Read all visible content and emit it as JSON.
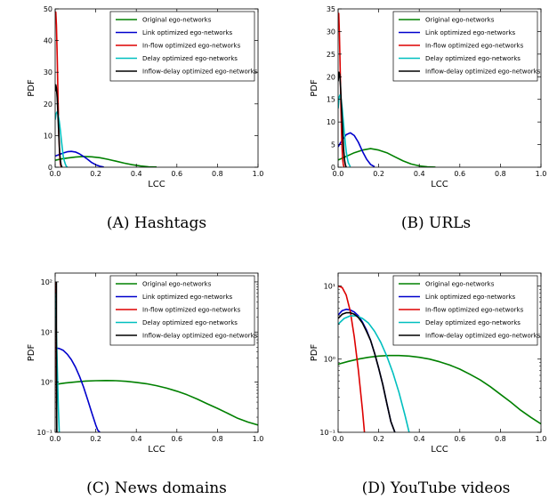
{
  "legend": [
    {
      "name": "Original ego-networks",
      "color": "#008000"
    },
    {
      "name": "Link optimized ego-networks",
      "color": "#0000cc"
    },
    {
      "name": "In-flow optimized ego-networks",
      "color": "#dd0000"
    },
    {
      "name": "Delay optimized ego-networks",
      "color": "#00bfbf"
    },
    {
      "name": "Inflow-delay optimized ego-networks",
      "color": "#000000"
    }
  ],
  "chart_data": [
    {
      "type": "line",
      "caption": "(A) Hashtags",
      "xlabel": "LCC",
      "ylabel": "PDF",
      "xlim": [
        0,
        1
      ],
      "ylim": [
        0,
        50
      ],
      "yscale": "linear",
      "xticks": [
        "0.0",
        "0.2",
        "0.4",
        "0.6",
        "0.8",
        "1.0"
      ],
      "yticks": [
        {
          "v": 0,
          "t": "0"
        },
        {
          "v": 10,
          "t": "10"
        },
        {
          "v": 20,
          "t": "20"
        },
        {
          "v": 30,
          "t": "30"
        },
        {
          "v": 40,
          "t": "40"
        },
        {
          "v": 50,
          "t": "50"
        }
      ],
      "legend_position": "top-right",
      "series": [
        {
          "name": "Original ego-networks",
          "color": "#008000",
          "x": [
            0,
            0.03,
            0.06,
            0.1,
            0.14,
            0.18,
            0.22,
            0.26,
            0.3,
            0.34,
            0.38,
            0.42,
            0.46,
            0.5
          ],
          "y": [
            2.2,
            2.6,
            2.9,
            3.2,
            3.4,
            3.3,
            3.0,
            2.5,
            1.9,
            1.3,
            0.8,
            0.4,
            0.15,
            0.05
          ]
        },
        {
          "name": "Link optimized ego-networks",
          "color": "#0000cc",
          "x": [
            0,
            0.02,
            0.04,
            0.06,
            0.08,
            0.1,
            0.12,
            0.14,
            0.16,
            0.18,
            0.2,
            0.22,
            0.24
          ],
          "y": [
            3.5,
            4.0,
            4.5,
            4.9,
            5.0,
            4.8,
            4.2,
            3.4,
            2.5,
            1.5,
            0.8,
            0.3,
            0.05
          ]
        },
        {
          "name": "In-flow optimized ego-networks",
          "color": "#dd0000",
          "x": [
            0,
            0.003,
            0.006,
            0.01,
            0.014,
            0.018,
            0.022,
            0.026,
            0.03
          ],
          "y": [
            48,
            49,
            45,
            35,
            22,
            11,
            4,
            1,
            0
          ]
        },
        {
          "name": "Delay optimized ego-networks",
          "color": "#00bfbf",
          "x": [
            0,
            0.005,
            0.01,
            0.015,
            0.02,
            0.025,
            0.03,
            0.035,
            0.04,
            0.045,
            0.05,
            0.055,
            0.06
          ],
          "y": [
            15,
            17,
            17.5,
            16.5,
            14.5,
            12,
            9,
            6,
            3.5,
            2,
            1,
            0.3,
            0
          ]
        },
        {
          "name": "Inflow-delay optimized ego-networks",
          "color": "#000000",
          "x": [
            0,
            0.003,
            0.006,
            0.01,
            0.014,
            0.018,
            0.022,
            0.026,
            0.03,
            0.034
          ],
          "y": [
            24,
            26,
            25,
            22,
            16,
            10,
            5,
            2,
            0.5,
            0
          ]
        }
      ]
    },
    {
      "type": "line",
      "caption": "(B) URLs",
      "xlabel": "LCC",
      "ylabel": "PDF",
      "xlim": [
        0,
        1
      ],
      "ylim": [
        0,
        35
      ],
      "yscale": "linear",
      "xticks": [
        "0.0",
        "0.2",
        "0.4",
        "0.6",
        "0.8",
        "1.0"
      ],
      "yticks": [
        {
          "v": 0,
          "t": "0"
        },
        {
          "v": 5,
          "t": "5"
        },
        {
          "v": 10,
          "t": "10"
        },
        {
          "v": 15,
          "t": "15"
        },
        {
          "v": 20,
          "t": "20"
        },
        {
          "v": 25,
          "t": "25"
        },
        {
          "v": 30,
          "t": "30"
        },
        {
          "v": 35,
          "t": "35"
        }
      ],
      "legend_position": "top-right",
      "series": [
        {
          "name": "Original ego-networks",
          "color": "#008000",
          "x": [
            0,
            0.04,
            0.08,
            0.12,
            0.16,
            0.2,
            0.24,
            0.28,
            0.32,
            0.36,
            0.4,
            0.44,
            0.48
          ],
          "y": [
            1.6,
            2.4,
            3.2,
            3.8,
            4.1,
            3.8,
            3.2,
            2.3,
            1.4,
            0.7,
            0.3,
            0.1,
            0.02
          ]
        },
        {
          "name": "Link optimized ego-networks",
          "color": "#0000cc",
          "x": [
            0,
            0.02,
            0.04,
            0.06,
            0.08,
            0.1,
            0.12,
            0.14,
            0.16,
            0.18
          ],
          "y": [
            4.5,
            6.0,
            7.2,
            7.6,
            7.0,
            5.5,
            3.5,
            1.8,
            0.6,
            0.1
          ]
        },
        {
          "name": "In-flow optimized ego-networks",
          "color": "#dd0000",
          "x": [
            0,
            0.003,
            0.006,
            0.01,
            0.014,
            0.018,
            0.022,
            0.026,
            0.03
          ],
          "y": [
            33,
            34,
            30,
            22,
            13,
            6,
            2,
            0.5,
            0
          ]
        },
        {
          "name": "Delay optimized ego-networks",
          "color": "#00bfbf",
          "x": [
            0,
            0.005,
            0.01,
            0.015,
            0.02,
            0.025,
            0.03,
            0.035,
            0.04,
            0.045,
            0.05,
            0.06
          ],
          "y": [
            13,
            15.5,
            16,
            15,
            13,
            10.5,
            8,
            5.5,
            3.5,
            2,
            1,
            0.1
          ]
        },
        {
          "name": "Inflow-delay optimized ego-networks",
          "color": "#000000",
          "x": [
            0,
            0.004,
            0.008,
            0.012,
            0.016,
            0.02,
            0.024,
            0.028,
            0.032,
            0.036,
            0.04
          ],
          "y": [
            19,
            21,
            20.5,
            18,
            14,
            10,
            6.5,
            3.5,
            1.5,
            0.5,
            0
          ]
        }
      ]
    },
    {
      "type": "line",
      "caption": "(C) News domains",
      "xlabel": "LCC",
      "ylabel": "PDF",
      "xlim": [
        0,
        1
      ],
      "ylim": [
        0.1,
        150
      ],
      "yscale": "log",
      "xticks": [
        "0.0",
        "0.2",
        "0.4",
        "0.6",
        "0.8",
        "1.0"
      ],
      "yticks": [
        {
          "v": 0.1,
          "t": "10⁻¹"
        },
        {
          "v": 1,
          "t": "10⁰"
        },
        {
          "v": 10,
          "t": "10¹"
        },
        {
          "v": 100,
          "t": "10²"
        }
      ],
      "legend_position": "top-right",
      "series": [
        {
          "name": "Original ego-networks",
          "color": "#008000",
          "x": [
            0,
            0.05,
            0.1,
            0.15,
            0.2,
            0.25,
            0.3,
            0.35,
            0.4,
            0.45,
            0.5,
            0.55,
            0.6,
            0.65,
            0.7,
            0.75,
            0.8,
            0.85,
            0.9,
            0.95,
            1.0
          ],
          "y": [
            0.9,
            0.96,
            1.01,
            1.05,
            1.07,
            1.08,
            1.07,
            1.04,
            0.99,
            0.93,
            0.85,
            0.76,
            0.66,
            0.56,
            0.46,
            0.37,
            0.3,
            0.24,
            0.19,
            0.16,
            0.14
          ]
        },
        {
          "name": "Link optimized ego-networks",
          "color": "#0000cc",
          "x": [
            0,
            0.02,
            0.04,
            0.06,
            0.08,
            0.1,
            0.12,
            0.14,
            0.16,
            0.18,
            0.2,
            0.21,
            0.22
          ],
          "y": [
            4.8,
            4.7,
            4.3,
            3.6,
            2.8,
            2.0,
            1.3,
            0.8,
            0.45,
            0.25,
            0.14,
            0.11,
            0.1
          ]
        },
        {
          "name": "In-flow optimized ego-networks",
          "color": "#dd0000",
          "x": [
            0,
            0.002,
            0.004,
            0.006,
            0.008
          ],
          "y": [
            100,
            40,
            8,
            1,
            0.1
          ]
        },
        {
          "name": "Delay optimized ego-networks",
          "color": "#00bfbf",
          "x": [
            0,
            0.004,
            0.008,
            0.012,
            0.016,
            0.02
          ],
          "y": [
            60,
            20,
            5,
            1.2,
            0.3,
            0.1
          ]
        },
        {
          "name": "Inflow-delay optimized ego-networks",
          "color": "#000000",
          "x": [
            0.006,
            0.006,
            0.007,
            0.008
          ],
          "y": [
            100,
            10,
            1,
            0.1
          ]
        }
      ]
    },
    {
      "type": "line",
      "caption": "(D) YouTube videos",
      "xlabel": "LCC",
      "ylabel": "PDF",
      "xlim": [
        0,
        1
      ],
      "ylim": [
        0.1,
        15
      ],
      "yscale": "log",
      "xticks": [
        "0.0",
        "0.2",
        "0.4",
        "0.6",
        "0.8",
        "1.0"
      ],
      "yticks": [
        {
          "v": 0.1,
          "t": "10⁻¹"
        },
        {
          "v": 1,
          "t": "10⁰"
        },
        {
          "v": 10,
          "t": "10¹"
        }
      ],
      "legend_position": "top-right",
      "series": [
        {
          "name": "Original ego-networks",
          "color": "#008000",
          "x": [
            0,
            0.05,
            0.1,
            0.15,
            0.2,
            0.25,
            0.3,
            0.35,
            0.4,
            0.45,
            0.5,
            0.55,
            0.6,
            0.65,
            0.7,
            0.75,
            0.8,
            0.85,
            0.9,
            0.95,
            1.0
          ],
          "y": [
            0.85,
            0.93,
            1.0,
            1.06,
            1.1,
            1.12,
            1.12,
            1.1,
            1.06,
            1.0,
            0.92,
            0.83,
            0.73,
            0.62,
            0.52,
            0.42,
            0.33,
            0.26,
            0.2,
            0.16,
            0.13
          ]
        },
        {
          "name": "Link optimized ego-networks",
          "color": "#0000cc",
          "x": [
            0,
            0.02,
            0.04,
            0.06,
            0.08,
            0.1,
            0.12,
            0.14,
            0.16,
            0.18,
            0.2,
            0.22,
            0.24,
            0.26,
            0.28
          ],
          "y": [
            4.0,
            4.6,
            4.8,
            4.7,
            4.4,
            3.9,
            3.2,
            2.5,
            1.8,
            1.2,
            0.75,
            0.45,
            0.25,
            0.14,
            0.1
          ]
        },
        {
          "name": "In-flow optimized ego-networks",
          "color": "#dd0000",
          "x": [
            0,
            0.02,
            0.04,
            0.06,
            0.08,
            0.1,
            0.12,
            0.13
          ],
          "y": [
            10,
            9.5,
            7.5,
            4.5,
            2.0,
            0.7,
            0.2,
            0.1
          ]
        },
        {
          "name": "Delay optimized ego-networks",
          "color": "#00bfbf",
          "x": [
            0,
            0.03,
            0.06,
            0.09,
            0.12,
            0.15,
            0.18,
            0.21,
            0.24,
            0.27,
            0.3,
            0.33,
            0.35
          ],
          "y": [
            3.0,
            3.6,
            3.9,
            3.9,
            3.6,
            3.1,
            2.4,
            1.7,
            1.1,
            0.65,
            0.35,
            0.17,
            0.1
          ]
        },
        {
          "name": "Inflow-delay optimized ego-networks",
          "color": "#000000",
          "x": [
            0,
            0.02,
            0.04,
            0.06,
            0.08,
            0.1,
            0.12,
            0.14,
            0.16,
            0.18,
            0.2,
            0.22,
            0.24,
            0.26,
            0.28
          ],
          "y": [
            3.6,
            4.1,
            4.3,
            4.3,
            4.1,
            3.7,
            3.1,
            2.4,
            1.8,
            1.2,
            0.75,
            0.45,
            0.25,
            0.14,
            0.1
          ]
        }
      ]
    }
  ]
}
